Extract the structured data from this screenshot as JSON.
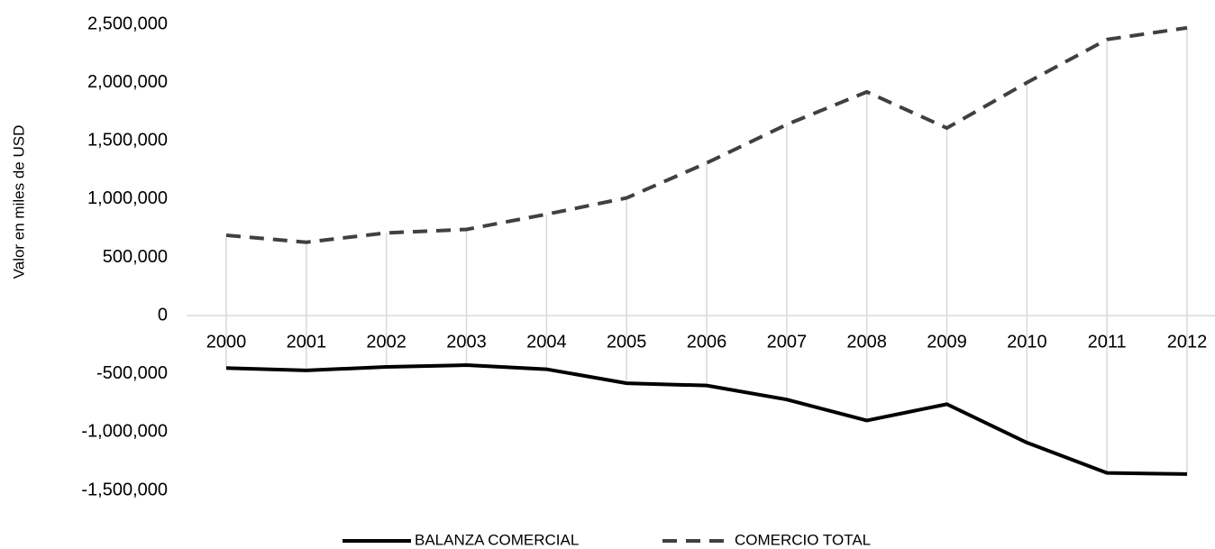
{
  "chart_data": {
    "type": "line",
    "y_label": "Valor en miles de USD",
    "categories": [
      "2000",
      "2001",
      "2002",
      "2003",
      "2004",
      "2005",
      "2006",
      "2007",
      "2008",
      "2009",
      "2010",
      "2011",
      "2012"
    ],
    "series": [
      {
        "name": "BALANZA COMERCIAL",
        "color": "#000000",
        "line_style": "solid",
        "values": [
          -450000,
          -470000,
          -440000,
          -425000,
          -460000,
          -580000,
          -600000,
          -720000,
          -900000,
          -760000,
          -1090000,
          -1350000,
          -1360000
        ]
      },
      {
        "name": "COMERCIO TOTAL",
        "color": "#404040",
        "line_style": "dashed",
        "values": [
          690000,
          630000,
          710000,
          740000,
          870000,
          1010000,
          1310000,
          1640000,
          1920000,
          1610000,
          2000000,
          2370000,
          2470000
        ]
      }
    ],
    "ylim": [
      -1500000,
      2500000
    ],
    "yticks": [
      {
        "value": -1500000,
        "label": "-1,500,000"
      },
      {
        "value": -1000000,
        "label": "-1,000,000"
      },
      {
        "value": -500000,
        "label": "-500,000"
      },
      0,
      {
        "value": 500000,
        "label": "500,000"
      },
      {
        "value": 1000000,
        "label": "1,000,000"
      },
      {
        "value": 1500000,
        "label": "1,500,000"
      },
      {
        "value": 2000000,
        "label": "2,000,000"
      },
      {
        "value": 2500000,
        "label": "2,500,000"
      }
    ],
    "high_low_lines": true,
    "legend": "bottom"
  }
}
